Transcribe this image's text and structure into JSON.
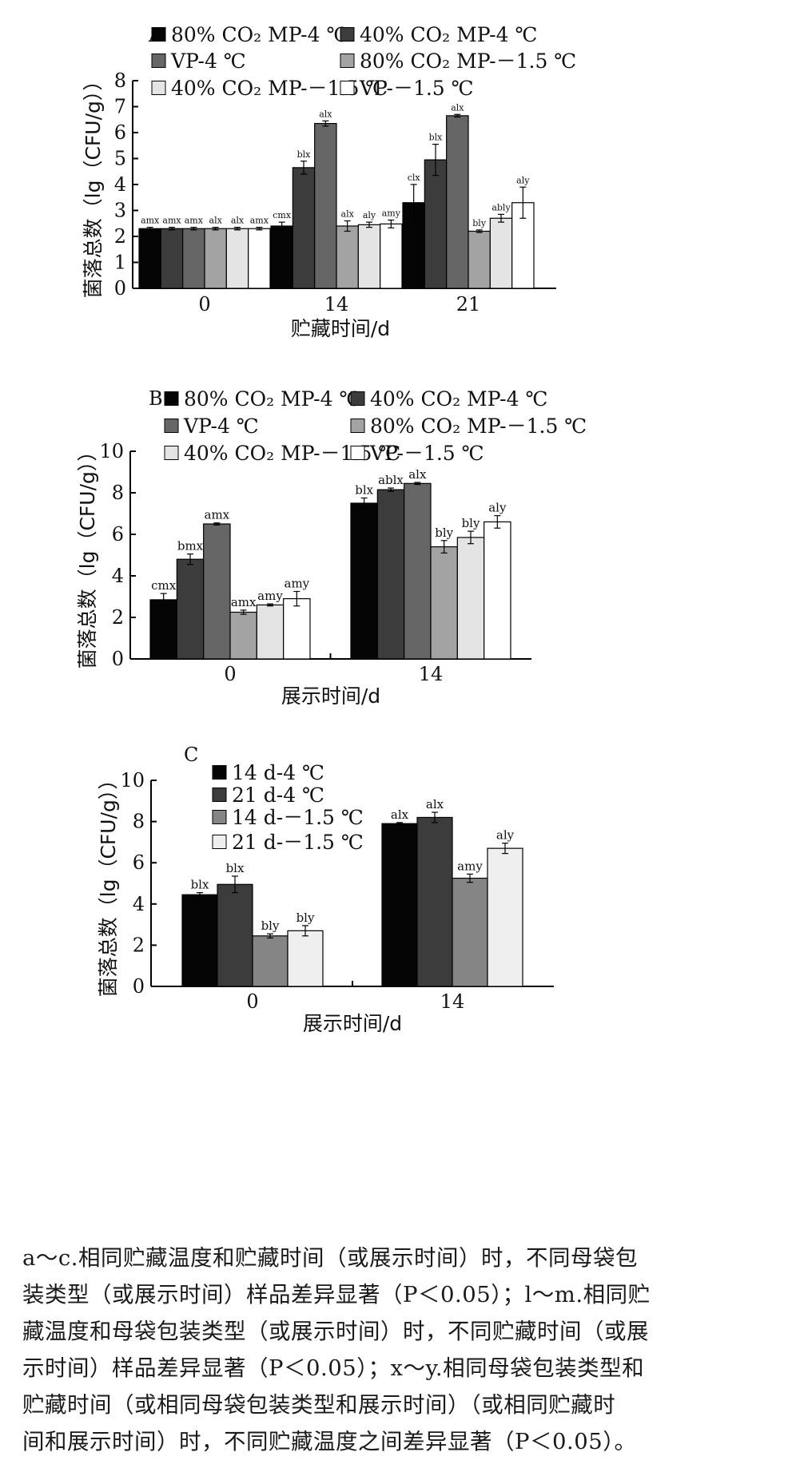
{
  "chart_data": [
    {
      "panel": "A",
      "type": "bar",
      "ylabel": "菌落总数（lg（CFU/g））",
      "xlabel": "贮藏时间/d",
      "ylim": [
        0,
        8
      ],
      "yticks": [
        "0",
        "1",
        "2",
        "3",
        "4",
        "5",
        "6",
        "7",
        "8"
      ],
      "categories": [
        "0",
        "14",
        "21"
      ],
      "series": [
        {
          "name": "80% CO₂ MP-4 ℃",
          "color": "#050505",
          "values": [
            2.3,
            2.4,
            3.3
          ],
          "err": [
            0.05,
            0.15,
            0.7
          ],
          "labels": [
            "amx",
            "cmx",
            "clx"
          ]
        },
        {
          "name": "40% CO₂ MP-4 ℃",
          "color": "#3c3c3c",
          "values": [
            2.3,
            4.65,
            4.95
          ],
          "err": [
            0.05,
            0.25,
            0.6
          ],
          "labels": [
            "amx",
            "blx",
            "blx"
          ]
        },
        {
          "name": "VP-4 ℃",
          "color": "#666666",
          "values": [
            2.3,
            6.35,
            6.65
          ],
          "err": [
            0.05,
            0.1,
            0.05
          ],
          "labels": [
            "amx",
            "alx",
            "alx"
          ]
        },
        {
          "name": "80% CO₂ MP-－1.5 ℃",
          "color": "#a3a3a3",
          "values": [
            2.3,
            2.4,
            2.2
          ],
          "err": [
            0.05,
            0.2,
            0.05
          ],
          "labels": [
            "alx",
            "alx",
            "bly"
          ]
        },
        {
          "name": "40% CO₂ MP-－1.5 ℃",
          "color": "#e4e4e4",
          "values": [
            2.3,
            2.45,
            2.7
          ],
          "err": [
            0.05,
            0.1,
            0.15
          ],
          "labels": [
            "alx",
            "aly",
            "ably"
          ]
        },
        {
          "name": "VP-－1.5 ℃",
          "color": "#ffffff",
          "values": [
            2.3,
            2.48,
            3.3
          ],
          "err": [
            0.05,
            0.15,
            0.6
          ],
          "labels": [
            "amx",
            "amy",
            "aly"
          ]
        }
      ]
    },
    {
      "panel": "B",
      "type": "bar",
      "ylabel": "菌落总数（lg（CFU/g））",
      "xlabel": "展示时间/d",
      "ylim": [
        0,
        10
      ],
      "yticks": [
        "0",
        "2",
        "4",
        "6",
        "8",
        "10"
      ],
      "categories": [
        "0",
        "14"
      ],
      "series": [
        {
          "name": "80% CO₂ MP-4 ℃",
          "color": "#050505",
          "values": [
            2.85,
            7.5
          ],
          "err": [
            0.3,
            0.25
          ],
          "labels": [
            "cmx",
            "blx"
          ]
        },
        {
          "name": "40% CO₂ MP-4 ℃",
          "color": "#3c3c3c",
          "values": [
            4.8,
            8.15
          ],
          "err": [
            0.25,
            0.08
          ],
          "labels": [
            "bmx",
            "ablx"
          ]
        },
        {
          "name": "VP-4 ℃",
          "color": "#666666",
          "values": [
            6.5,
            8.45
          ],
          "err": [
            0.05,
            0.05
          ],
          "labels": [
            "amx",
            "alx"
          ]
        },
        {
          "name": "80% CO₂ MP-－1.5 ℃",
          "color": "#a3a3a3",
          "values": [
            2.25,
            5.4
          ],
          "err": [
            0.1,
            0.3
          ],
          "labels": [
            "amx",
            "bly"
          ]
        },
        {
          "name": "40% CO₂ MP-－1.5 ℃",
          "color": "#e4e4e4",
          "values": [
            2.6,
            5.85
          ],
          "err": [
            0.05,
            0.3
          ],
          "labels": [
            "amy",
            "bly"
          ]
        },
        {
          "name": "VP-－1.5 ℃",
          "color": "#ffffff",
          "values": [
            2.9,
            6.6
          ],
          "err": [
            0.35,
            0.3
          ],
          "labels": [
            "amy",
            "aly"
          ]
        }
      ]
    },
    {
      "panel": "C",
      "type": "bar",
      "ylabel": "菌落总数（lg（CFU/g））",
      "xlabel": "展示时间/d",
      "ylim": [
        0,
        10
      ],
      "yticks": [
        "0",
        "2",
        "4",
        "6",
        "8",
        "10"
      ],
      "categories": [
        "0",
        "14"
      ],
      "series": [
        {
          "name": "14 d-4 ℃",
          "color": "#050505",
          "values": [
            4.45,
            7.9
          ],
          "err": [
            0.1,
            0.05
          ],
          "labels": [
            "blx",
            "alx"
          ]
        },
        {
          "name": "21 d-4 ℃",
          "color": "#3c3c3c",
          "values": [
            4.95,
            8.2
          ],
          "err": [
            0.4,
            0.25
          ],
          "labels": [
            "blx",
            "alx"
          ]
        },
        {
          "name": "14 d-－1.5 ℃",
          "color": "#858585",
          "values": [
            2.45,
            5.25
          ],
          "err": [
            0.1,
            0.2
          ],
          "labels": [
            "bly",
            "amy"
          ]
        },
        {
          "name": "21 d-－1.5 ℃",
          "color": "#efefef",
          "values": [
            2.7,
            6.7
          ],
          "err": [
            0.25,
            0.25
          ],
          "labels": [
            "bly",
            "aly"
          ]
        }
      ]
    }
  ],
  "caption": {
    "lines": [
      "a～c.相同贮藏温度和贮藏时间（或展示时间）时，不同母袋包",
      "装类型（或展示时间）样品差异显著（P＜0.05）；l～m.相同贮",
      "藏温度和母袋包装类型（或展示时间）时，不同贮藏时间（或展",
      "示时间）样品差异显著（P＜0.05）；x～y.相同母袋包装类型和",
      "贮藏时间（或相同母袋包装类型和展示时间）（或相同贮藏时",
      "间和展示时间）时，不同贮藏温度之间差异显著（P＜0.05）。"
    ]
  }
}
